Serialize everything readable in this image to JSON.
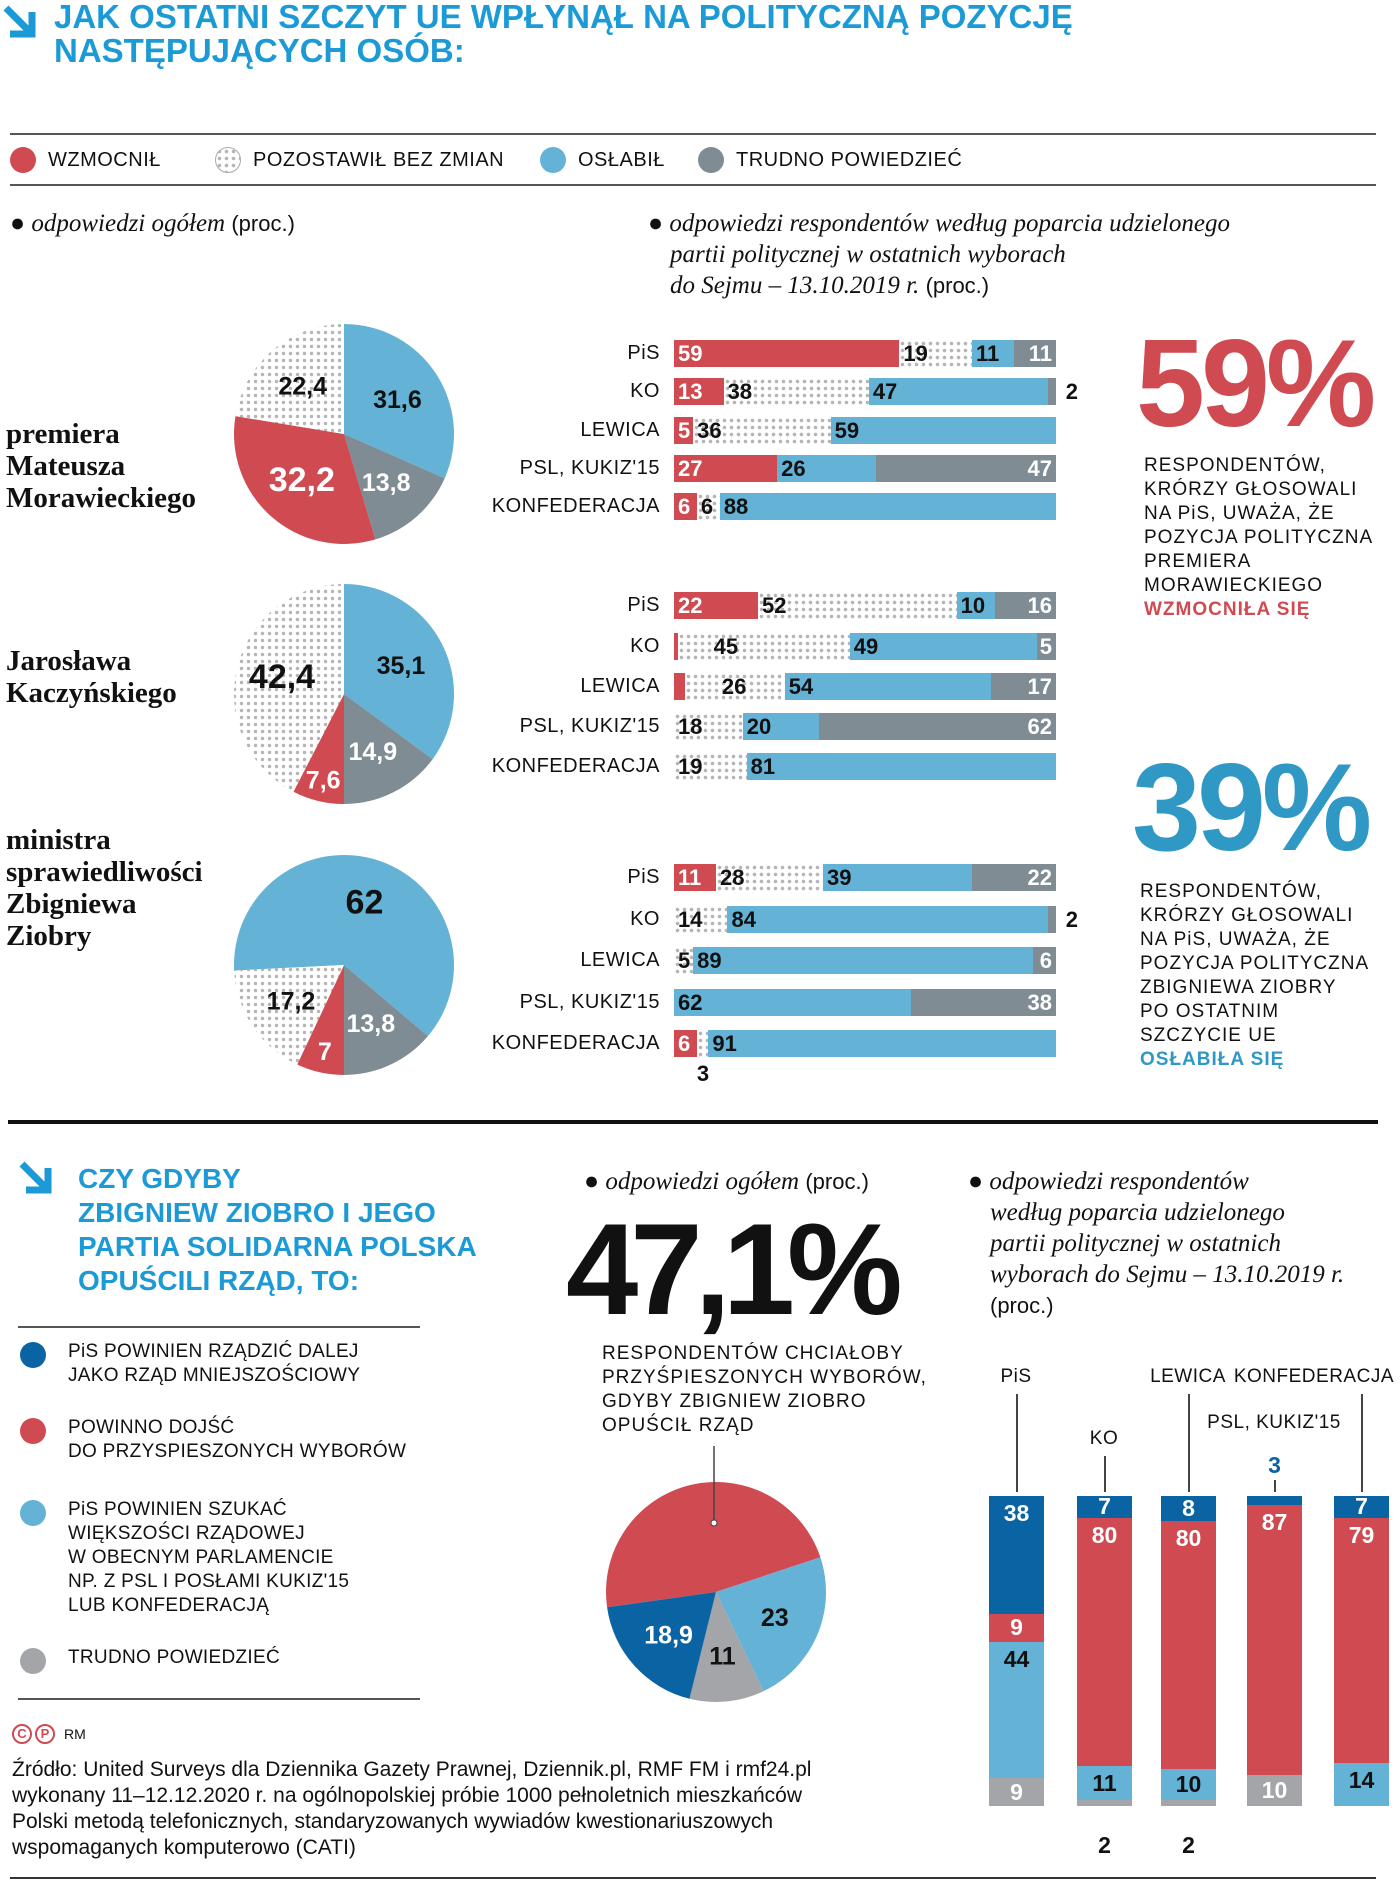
{
  "header": {
    "title_lines": [
      "JAK OSTATNI SZCZYT UE WPŁYNĄŁ NA POLITYCZNĄ POZYCJĘ",
      "NASTĘPUJĄCYCH OSÓB:"
    ]
  },
  "legend": [
    {
      "label": "WZMOCNIŁ",
      "color": "#d04a52"
    },
    {
      "label": "POZOSTAWIŁ BEZ ZMIAN",
      "color": "dotted"
    },
    {
      "label": "OSŁABIŁ",
      "color": "#64b2d6"
    },
    {
      "label": "TRUDNO POWIEDZIEĆ",
      "color": "#7f8c93"
    }
  ],
  "subheads": {
    "left_italic": "odpowiedzi ogółem",
    "left_plain": "(proc.)",
    "right_italic_lines": [
      "odpowiedzi respondentów według poparcia udzielonego",
      "partii politycznej w ostatnich wyborach",
      "do Sejmu – 13.10.2019 r."
    ],
    "right_plain": "(proc.)"
  },
  "persons": [
    {
      "lines": [
        "premiera",
        "Mateusza",
        "Morawieckiego"
      ]
    },
    {
      "lines": [
        "Jarosława",
        "Kaczyńskiego"
      ]
    },
    {
      "lines": [
        "ministra",
        "sprawiedliwości",
        "Zbigniewa",
        "Ziobry"
      ]
    }
  ],
  "stats": [
    {
      "value": "59%",
      "color": "#d04a52",
      "lines": [
        "RESPONDENTÓW,",
        "KRÓRZY GŁOSOWALI",
        "NA PiS, UWAŻA, ŻE",
        "POZYCJA POLITYCZNA",
        "PREMIERA",
        "MORAWIECKIEGO"
      ],
      "highlight": "WZMOCNIŁA SIĘ"
    },
    {
      "value": "39%",
      "color": "#2f98c4",
      "lines": [
        "RESPONDENTÓW,",
        "KRÓRZY GŁOSOWALI",
        "NA PiS, UWAŻA, ŻE",
        "POZYCJA POLITYCZNA",
        "ZBIGNIEWA ZIOBRY",
        "PO OSTATNIM",
        "SZCZYCIE UE"
      ],
      "highlight": "OSŁABIŁA SIĘ"
    }
  ],
  "chart_data": [
    {
      "type": "pie",
      "title": "premiera Mateusza Morawieckiego",
      "categories": [
        "WZMOCNIŁ",
        "POZOSTAWIŁ BEZ ZMIAN",
        "OSŁABIŁ",
        "TRUDNO POWIEDZIEĆ"
      ],
      "values": [
        32.2,
        22.4,
        31.6,
        13.8
      ],
      "labels": [
        "32,2",
        "22,4",
        "31,6",
        "13,8"
      ]
    },
    {
      "type": "pie",
      "title": "Jarosława Kaczyńskiego",
      "categories": [
        "WZMOCNIŁ",
        "POZOSTAWIŁ BEZ ZMIAN",
        "OSŁABIŁ",
        "TRUDNO POWIEDZIEĆ"
      ],
      "values": [
        7.6,
        42.4,
        35.1,
        14.9
      ],
      "labels": [
        "7,6",
        "42,4",
        "35,1",
        "14,9"
      ]
    },
    {
      "type": "pie",
      "title": "ministra sprawiedliwości Zbigniewa Ziobry",
      "categories": [
        "WZMOCNIŁ",
        "POZOSTAWIŁ BEZ ZMIAN",
        "OSŁABIŁ",
        "TRUDNO POWIEDZIEĆ"
      ],
      "values": [
        7,
        17.2,
        62,
        13.8
      ],
      "labels": [
        "7",
        "17,2",
        "62",
        "13,8"
      ]
    },
    {
      "type": "bar",
      "stacked": true,
      "orientation": "horizontal",
      "person": "Morawiecki",
      "categories": [
        "PiS",
        "KO",
        "LEWICA",
        "PSL, KUKIZ'15",
        "KONFEDERACJA"
      ],
      "series": [
        {
          "name": "WZMOCNIŁ",
          "values": [
            59,
            13,
            5,
            27,
            6
          ]
        },
        {
          "name": "POZOSTAWIŁ BEZ ZMIAN",
          "values": [
            19,
            38,
            36,
            0,
            6
          ]
        },
        {
          "name": "OSŁABIŁ",
          "values": [
            11,
            47,
            59,
            26,
            88
          ]
        },
        {
          "name": "TRUDNO POWIEDZIEĆ",
          "values": [
            11,
            2,
            0,
            47,
            0
          ]
        }
      ]
    },
    {
      "type": "bar",
      "stacked": true,
      "orientation": "horizontal",
      "person": "Kaczyński",
      "categories": [
        "PiS",
        "KO",
        "LEWICA",
        "PSL, KUKIZ'15",
        "KONFEDERACJA"
      ],
      "series": [
        {
          "name": "WZMOCNIŁ",
          "values": [
            22,
            1,
            3,
            0,
            0
          ]
        },
        {
          "name": "POZOSTAWIŁ BEZ ZMIAN",
          "values": [
            52,
            45,
            26,
            18,
            19
          ]
        },
        {
          "name": "OSŁABIŁ",
          "values": [
            10,
            49,
            54,
            20,
            81
          ]
        },
        {
          "name": "TRUDNO POWIEDZIEĆ",
          "values": [
            16,
            5,
            17,
            62,
            0
          ]
        }
      ]
    },
    {
      "type": "bar",
      "stacked": true,
      "orientation": "horizontal",
      "person": "Ziobro",
      "categories": [
        "PiS",
        "KO",
        "LEWICA",
        "PSL, KUKIZ'15",
        "KONFEDERACJA"
      ],
      "series": [
        {
          "name": "WZMOCNIŁ",
          "values": [
            11,
            0,
            0,
            0,
            6
          ]
        },
        {
          "name": "POZOSTAWIŁ BEZ ZMIAN",
          "values": [
            28,
            14,
            5,
            0,
            3
          ]
        },
        {
          "name": "OSŁABIŁ",
          "values": [
            39,
            84,
            89,
            62,
            91
          ]
        },
        {
          "name": "TRUDNO POWIEDZIEĆ",
          "values": [
            22,
            2,
            6,
            38,
            0
          ]
        }
      ]
    },
    {
      "type": "pie",
      "title": "odpowiedzi ogółem (proc.)",
      "categories": [
        "POWINNO DOJŚĆ DO PRZYSPIESZONYCH WYBORÓW",
        "PiS POWINIEN SZUKAĆ WIĘKSZOŚCI RZĄDOWEJ",
        "TRUDNO POWIEDZIEĆ",
        "PiS POWINIEN RZĄDZIĆ DALEJ JAKO RZĄD MNIEJSZOŚCIOWY"
      ],
      "values": [
        47.1,
        23,
        11,
        18.9
      ],
      "labels": [
        "",
        "23",
        "11",
        "18,9"
      ]
    },
    {
      "type": "bar",
      "stacked": true,
      "orientation": "vertical",
      "categories": [
        "PiS",
        "KO",
        "LEWICA",
        "PSL, KUKIZ'15",
        "KONFEDERACJA"
      ],
      "series": [
        {
          "name": "PiS POWINIEN RZĄDZIĆ DALEJ",
          "values": [
            38,
            7,
            8,
            3,
            7
          ]
        },
        {
          "name": "POWINNO DOJŚĆ DO PRZYSPIESZONYCH WYBORÓW",
          "values": [
            9,
            80,
            80,
            87,
            79
          ]
        },
        {
          "name": "PiS POWINIEN SZUKAĆ WIĘKSZOŚCI RZĄDOWEJ",
          "values": [
            44,
            11,
            10,
            0,
            14
          ]
        },
        {
          "name": "TRUDNO POWIEDZIEĆ",
          "values": [
            9,
            2,
            2,
            10,
            0
          ]
        }
      ]
    }
  ],
  "colors": {
    "red": "#d04a52",
    "light_blue": "#64b2d6",
    "gray": "#7f8c93",
    "dark_blue": "#0a64a4",
    "pie_gray": "#a3a5a8",
    "title_blue": "#1c9ad6"
  },
  "bottom": {
    "title_lines": [
      "CZY GDYBY",
      "ZBIGNIEW ZIOBRO I JEGO",
      "PARTIA SOLIDARNA POLSKA",
      "OPUŚCILI RZĄD, TO:"
    ],
    "legend": [
      {
        "lines": [
          "PiS POWINIEN RZĄDZIĆ DALEJ",
          "JAKO RZĄD MNIEJSZOŚCIOWY"
        ],
        "color": "#0a64a4"
      },
      {
        "lines": [
          "POWINNO DOJŚĆ",
          "DO PRZYSPIESZONYCH WYBORÓW"
        ],
        "color": "#d04a52"
      },
      {
        "lines": [
          "PiS POWINIEN SZUKAĆ",
          "WIĘKSZOŚCI RZĄDOWEJ",
          "W OBECNYM PARLAMENCIE",
          "NP. Z PSL I POSŁAMI KUKIZ'15",
          "LUB KONFEDERACJĄ"
        ],
        "color": "#64b2d6"
      },
      {
        "lines": [
          "TRUDNO POWIEDZIEĆ"
        ],
        "color": "#a3a5a8"
      }
    ],
    "mid_sub_italic": "odpowiedzi ogółem",
    "mid_sub_plain": "(proc.)",
    "big_value": "47,1%",
    "big_lines": [
      "RESPONDENTÓW CHCIAŁOBY",
      "PRZYŚPIESZONYCH WYBORÓW,",
      "GDYBY ZBIGNIEW ZIOBRO",
      "OPUŚCIŁ RZĄD"
    ],
    "right_sub_lines": [
      "odpowiedzi respondentów",
      "według poparcia udzielonego",
      "partii politycznej w ostatnich",
      "wyborach do Sejmu – 13.10.2019 r."
    ],
    "right_sub_plain": "(proc.)"
  },
  "footer": {
    "credit": "RM",
    "source_lines": [
      "Źródło: United Surveys dla Dziennika Gazety Prawnej, Dziennik.pl, RMF FM i rmf24.pl",
      "wykonany 11–12.12.2020 r. na ogólnopolskiej próbie 1000 pełnoletnich mieszkańców",
      "Polski  metodą telefonicznych, standaryzowanych wywiadów kwestionariuszowych",
      "wspomaganych komputerowo (CATI)"
    ]
  }
}
